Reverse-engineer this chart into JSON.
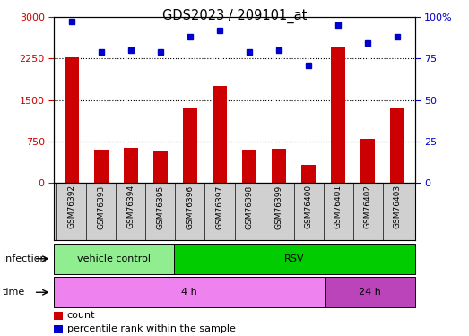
{
  "title": "GDS2023 / 209101_at",
  "samples": [
    "GSM76392",
    "GSM76393",
    "GSM76394",
    "GSM76395",
    "GSM76396",
    "GSM76397",
    "GSM76398",
    "GSM76399",
    "GSM76400",
    "GSM76401",
    "GSM76402",
    "GSM76403"
  ],
  "counts": [
    2270,
    610,
    630,
    580,
    1340,
    1750,
    610,
    620,
    330,
    2450,
    790,
    1370
  ],
  "percentile_ranks": [
    97,
    79,
    80,
    79,
    88,
    92,
    79,
    80,
    71,
    95,
    84,
    88
  ],
  "left_ylim": [
    0,
    3000
  ],
  "right_ylim": [
    0,
    100
  ],
  "left_yticks": [
    0,
    750,
    1500,
    2250,
    3000
  ],
  "right_yticks": [
    0,
    25,
    50,
    75,
    100
  ],
  "right_yticklabels": [
    "0",
    "25",
    "50",
    "75",
    "100%"
  ],
  "bar_color": "#cc0000",
  "dot_color": "#0000cc",
  "infection_labels": [
    {
      "label": "vehicle control",
      "start": 0,
      "end": 4,
      "color": "#90ee90"
    },
    {
      "label": "RSV",
      "start": 4,
      "end": 12,
      "color": "#00cc00"
    }
  ],
  "time_labels": [
    {
      "label": "4 h",
      "start": 0,
      "end": 9,
      "color": "#ee82ee"
    },
    {
      "label": "24 h",
      "start": 9,
      "end": 12,
      "color": "#bb44bb"
    }
  ],
  "infection_row_label": "infection",
  "time_row_label": "time",
  "legend_count_label": "count",
  "legend_pct_label": "percentile rank within the sample"
}
